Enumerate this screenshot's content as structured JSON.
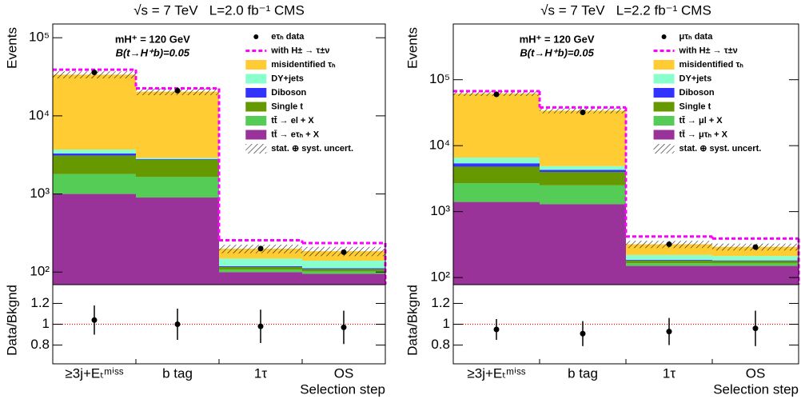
{
  "chart_data": [
    {
      "type": "bar",
      "stacked": true,
      "log_scale": true,
      "title": "√s = 7 TeV   L=2.0 fb⁻¹ CMS",
      "ylabel": "Events",
      "annotations": [
        "mH⁺ = 120 GeV",
        "B(t→H⁺b)=0.05"
      ],
      "ylim": [
        69,
        150000
      ],
      "yticks": [
        {
          "value": 100,
          "label": "10²"
        },
        {
          "value": 1000,
          "label": "10³"
        },
        {
          "value": 10000,
          "label": "10⁴"
        },
        {
          "value": 100000,
          "label": "10⁵"
        }
      ],
      "legend_position": "upper right",
      "data": {
        "name": "eτₕ data",
        "color": "#000000",
        "values": [
          36000,
          21000,
          200,
          180
        ]
      },
      "signal": {
        "name": "with H± → τ±ν",
        "color": "#ff00ff",
        "values": [
          39000,
          22500,
          255,
          235
        ]
      },
      "series": [
        {
          "name": "tt̄ → eτₕ + X",
          "color": "#993399",
          "values": [
            1000,
            900,
            100,
            95
          ]
        },
        {
          "name": "tt̄ → el + X",
          "color": "#55cc55",
          "values": [
            800,
            750,
            8,
            7
          ]
        },
        {
          "name": "Single t",
          "color": "#669900",
          "values": [
            1300,
            1100,
            8,
            7
          ]
        },
        {
          "name": "Diboson",
          "color": "#3333ff",
          "values": [
            200,
            50,
            3,
            3
          ]
        },
        {
          "name": "DY+jets",
          "color": "#88ffcc",
          "values": [
            400,
            100,
            30,
            28
          ]
        },
        {
          "name": "misidentified τₕ",
          "color": "#ffcc33",
          "values": [
            30000,
            17500,
            50,
            45
          ]
        }
      ],
      "uncertainty": {
        "name": "stat. ⊕ syst. uncert.",
        "values": [
          3500,
          2000,
          25,
          25
        ]
      }
    },
    {
      "type": "errorbar",
      "ylabel": "Data/Bkgnd",
      "xlabel": "Selection step",
      "categories": [
        "≥3j+Eₜᵐⁱˢˢ",
        "b tag",
        "1τ",
        "OS"
      ],
      "values": [
        1.04,
        1.0,
        0.98,
        0.97
      ],
      "errors": [
        0.14,
        0.15,
        0.16,
        0.16
      ],
      "ylim": [
        0.62,
        1.38
      ],
      "yticks": [
        0.8,
        1,
        1.2
      ],
      "reference_line": 1,
      "reference_color": "#ff0000"
    },
    {
      "type": "bar",
      "stacked": true,
      "log_scale": true,
      "title": "√s = 7 TeV   L=2.2 fb⁻¹ CMS",
      "ylabel": "Events",
      "annotations": [
        "mH⁺ = 120 GeV",
        "B(t→H⁺b)=0.05"
      ],
      "ylim": [
        78,
        700000
      ],
      "yticks": [
        {
          "value": 100,
          "label": "10²"
        },
        {
          "value": 1000,
          "label": "10³"
        },
        {
          "value": 10000,
          "label": "10⁴"
        },
        {
          "value": 100000,
          "label": "10⁵"
        }
      ],
      "legend_position": "upper right",
      "data": {
        "name": "μτₕ data",
        "color": "#000000",
        "values": [
          60000,
          32000,
          320,
          290
        ]
      },
      "signal": {
        "name": "with H± → τ±ν",
        "color": "#ff00ff",
        "values": [
          67000,
          38000,
          420,
          390
        ]
      },
      "series": [
        {
          "name": "tt̄ → μτₕ + X",
          "color": "#993399",
          "values": [
            1400,
            1300,
            150,
            150
          ]
        },
        {
          "name": "tt̄ → μl + X",
          "color": "#55cc55",
          "values": [
            1300,
            1200,
            15,
            14
          ]
        },
        {
          "name": "Single t",
          "color": "#669900",
          "values": [
            2100,
            1500,
            15,
            14
          ]
        },
        {
          "name": "Diboson",
          "color": "#3333ff",
          "values": [
            600,
            300,
            5,
            4
          ]
        },
        {
          "name": "DY+jets",
          "color": "#88ffcc",
          "values": [
            1200,
            600,
            35,
            30
          ]
        },
        {
          "name": "misidentified τₕ",
          "color": "#ffcc33",
          "values": [
            55000,
            29000,
            100,
            80
          ]
        }
      ],
      "uncertainty": {
        "name": "stat. ⊕ syst. uncert.",
        "values": [
          5000,
          3000,
          40,
          35
        ]
      }
    },
    {
      "type": "errorbar",
      "ylabel": "Data/Bkgnd",
      "xlabel": "Selection step",
      "categories": [
        "≥3j+Eₜᵐⁱˢˢ",
        "b tag",
        "1τ",
        "OS"
      ],
      "values": [
        0.95,
        0.91,
        0.93,
        0.96
      ],
      "errors": [
        0.1,
        0.12,
        0.13,
        0.17
      ],
      "ylim": [
        0.62,
        1.38
      ],
      "yticks": [
        0.8,
        1,
        1.2
      ],
      "reference_line": 1,
      "reference_color": "#ff0000"
    }
  ]
}
